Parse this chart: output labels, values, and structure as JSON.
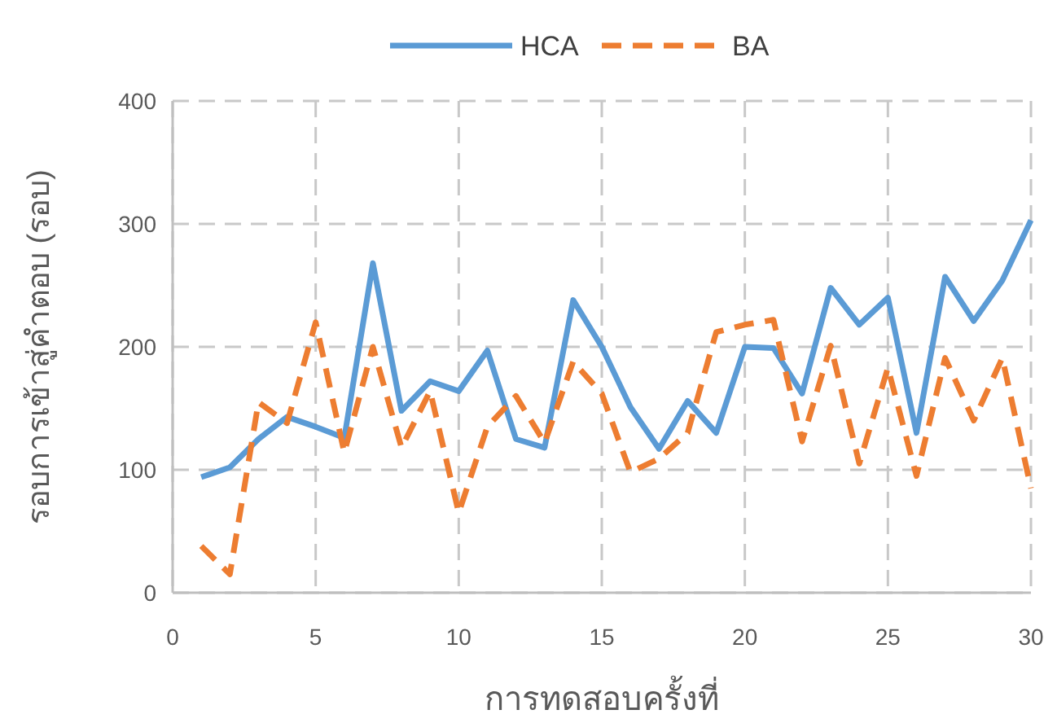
{
  "chart_data": {
    "type": "line",
    "xlabel": "การทดสอบครั้งที่",
    "ylabel": "รอบการเข้าสู่คำตอบ (รอบ)",
    "x": [
      1,
      2,
      3,
      4,
      5,
      6,
      7,
      8,
      9,
      10,
      11,
      12,
      13,
      14,
      15,
      16,
      17,
      18,
      19,
      20,
      21,
      22,
      23,
      24,
      25,
      26,
      27,
      28,
      29,
      30
    ],
    "xlim": [
      0,
      30
    ],
    "xticks": [
      0,
      5,
      10,
      15,
      20,
      25,
      30
    ],
    "ylim": [
      0,
      400
    ],
    "yticks": [
      0,
      100,
      200,
      300,
      400
    ],
    "grid": true,
    "legend": "top",
    "marker": "none",
    "series": [
      {
        "name": "HCA",
        "color": "#5b9bd5",
        "line_style": "solid",
        "values": [
          94,
          102,
          125,
          143,
          135,
          126,
          268,
          148,
          172,
          164,
          197,
          125,
          118,
          238,
          200,
          151,
          117,
          156,
          130,
          200,
          199,
          162,
          248,
          218,
          240,
          130,
          257,
          221,
          254,
          303
        ]
      },
      {
        "name": "BA",
        "color": "#ed7d31",
        "line_style": "dashed",
        "values": [
          38,
          15,
          155,
          138,
          220,
          114,
          200,
          118,
          164,
          65,
          135,
          160,
          122,
          188,
          162,
          98,
          109,
          130,
          212,
          218,
          222,
          123,
          201,
          105,
          183,
          95,
          191,
          140,
          191,
          85
        ]
      }
    ]
  }
}
